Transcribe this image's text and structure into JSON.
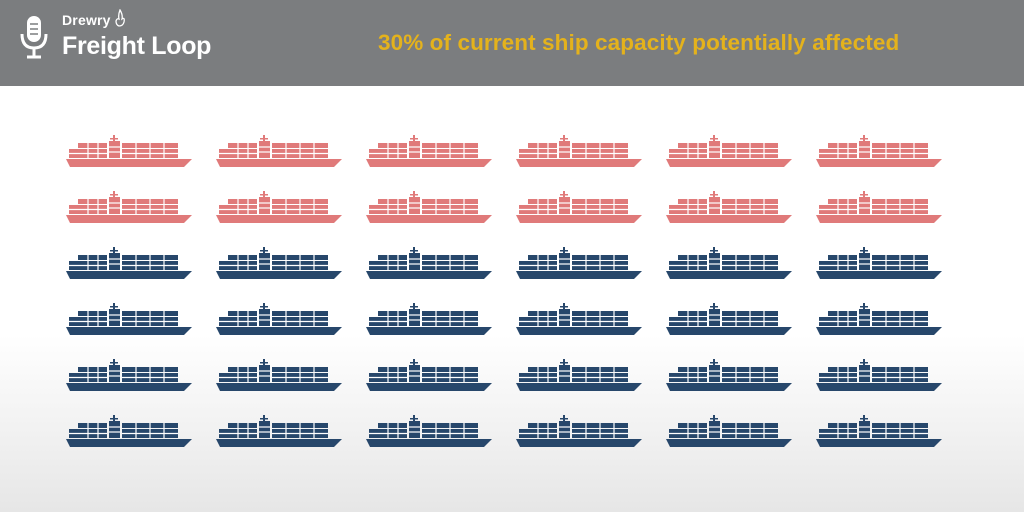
{
  "header": {
    "brand_small": "Drewry",
    "brand_big": "Freight Loop",
    "headline": "30% of current ship capacity potentially affected",
    "icons": {
      "logo": "microphone-icon",
      "brand_mark": "flame-icon"
    }
  },
  "ships": {
    "rows": 6,
    "columns": 6,
    "affected_rows": 2,
    "affected_share_percent": 30,
    "colors": {
      "affected": "#e07a7a",
      "unaffected": "#27476b",
      "header_bg": "#7b7d7f",
      "headline": "#e4b21c"
    },
    "icon": "container-ship-icon"
  }
}
